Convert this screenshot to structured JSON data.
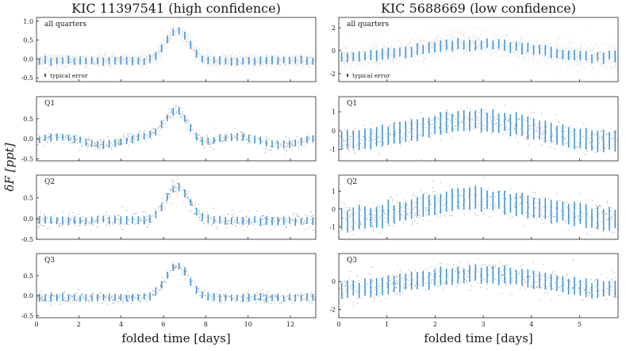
{
  "figure": {
    "ylabel": "δF [ppt]",
    "xlabel": "folded time [days]",
    "typical_error_label": "typical error"
  },
  "chart_data": [
    {
      "type": "scatter",
      "title": "KIC 11397541 (high confidence)",
      "xlabel": "folded time [days]",
      "ylabel": "δF [ppt]",
      "xlim": [
        0,
        13.2
      ],
      "xticks": [
        0,
        2,
        4,
        6,
        8,
        10,
        12
      ],
      "bins": 48,
      "model": {
        "kind": "pulse",
        "baseline": -0.05,
        "amplitude": 0.8,
        "center": 6.65,
        "width": 0.55
      },
      "panels": [
        {
          "label": "all quarters",
          "ylim": [
            -0.6,
            1.1
          ],
          "yticks": [
            -0.5,
            0.0,
            0.5,
            1.0
          ],
          "spread": 0.11,
          "error": 0.1,
          "typical_error": true
        },
        {
          "label": "Q1",
          "ylim": [
            -0.55,
            1.05
          ],
          "yticks": [
            -0.5,
            0.0,
            0.5
          ],
          "spread": 0.08,
          "error": 0.09,
          "wave": 0.1,
          "typical_error": false
        },
        {
          "label": "Q2",
          "ylim": [
            -0.5,
            1.05
          ],
          "yticks": [
            -0.5,
            0.0,
            0.5
          ],
          "spread": 0.1,
          "error": 0.09,
          "typical_error": false
        },
        {
          "label": "Q3",
          "ylim": [
            -0.55,
            1.05
          ],
          "yticks": [
            -0.5,
            0.0,
            0.5
          ],
          "spread": 0.07,
          "error": 0.09,
          "typical_error": false
        }
      ]
    },
    {
      "type": "scatter",
      "title": "KIC 5688669 (low confidence)",
      "xlabel": "folded time [days]",
      "ylabel": "δF [ppt]",
      "xlim": [
        0,
        5.8
      ],
      "xticks": [
        0,
        1,
        2,
        3,
        4,
        5
      ],
      "bins": 48,
      "model": {
        "kind": "sine",
        "baseline": 0.0,
        "amplitude": 0.55,
        "center": 2.85,
        "width": 0.6
      },
      "panels": [
        {
          "label": "all quarters",
          "ylim": [
            -2.7,
            2.9
          ],
          "yticks": [
            -2,
            0,
            2
          ],
          "spread": 0.6,
          "error": 0.45,
          "typical_error": true
        },
        {
          "label": "Q1",
          "ylim": [
            -1.6,
            1.8
          ],
          "yticks": [
            -1,
            0,
            1
          ],
          "spread": 0.35,
          "error": 0.55,
          "typical_error": false
        },
        {
          "label": "Q2",
          "ylim": [
            -1.7,
            1.9
          ],
          "yticks": [
            -1,
            0,
            1
          ],
          "spread": 0.45,
          "error": 0.6,
          "typical_error": false
        },
        {
          "label": "Q3",
          "ylim": [
            -2.6,
            2.0
          ],
          "yticks": [
            -2,
            0
          ],
          "spread": 0.5,
          "error": 0.6,
          "typical_error": false
        }
      ]
    }
  ]
}
